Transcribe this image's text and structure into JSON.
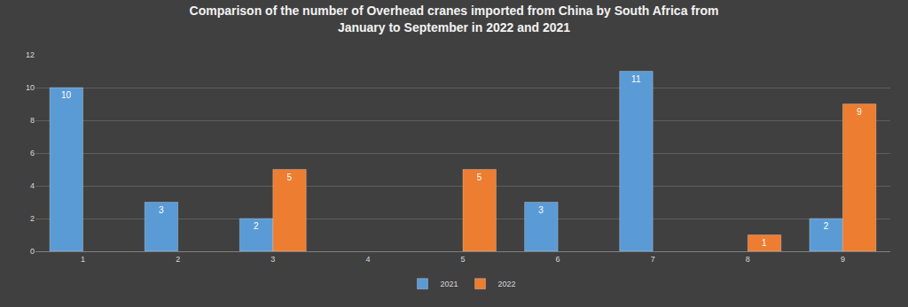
{
  "chart_data": {
    "type": "bar",
    "title": "Comparison of the number of Overhead cranes imported from China by South Africa from\nJanuary to September in 2022 and 2021",
    "categories": [
      "1",
      "2",
      "3",
      "4",
      "5",
      "6",
      "7",
      "8",
      "9"
    ],
    "series": [
      {
        "name": "2021",
        "color": "#5b9bd5",
        "values": [
          10,
          3,
          2,
          null,
          null,
          3,
          11,
          null,
          2
        ]
      },
      {
        "name": "2022",
        "color": "#ed7d31",
        "values": [
          null,
          null,
          5,
          null,
          5,
          null,
          null,
          1,
          9
        ]
      }
    ],
    "ylim": [
      0,
      12
    ],
    "yticks": [
      0,
      2,
      4,
      6,
      8,
      10,
      12
    ],
    "grid": true,
    "legend": "bottom",
    "data_labels": true
  }
}
